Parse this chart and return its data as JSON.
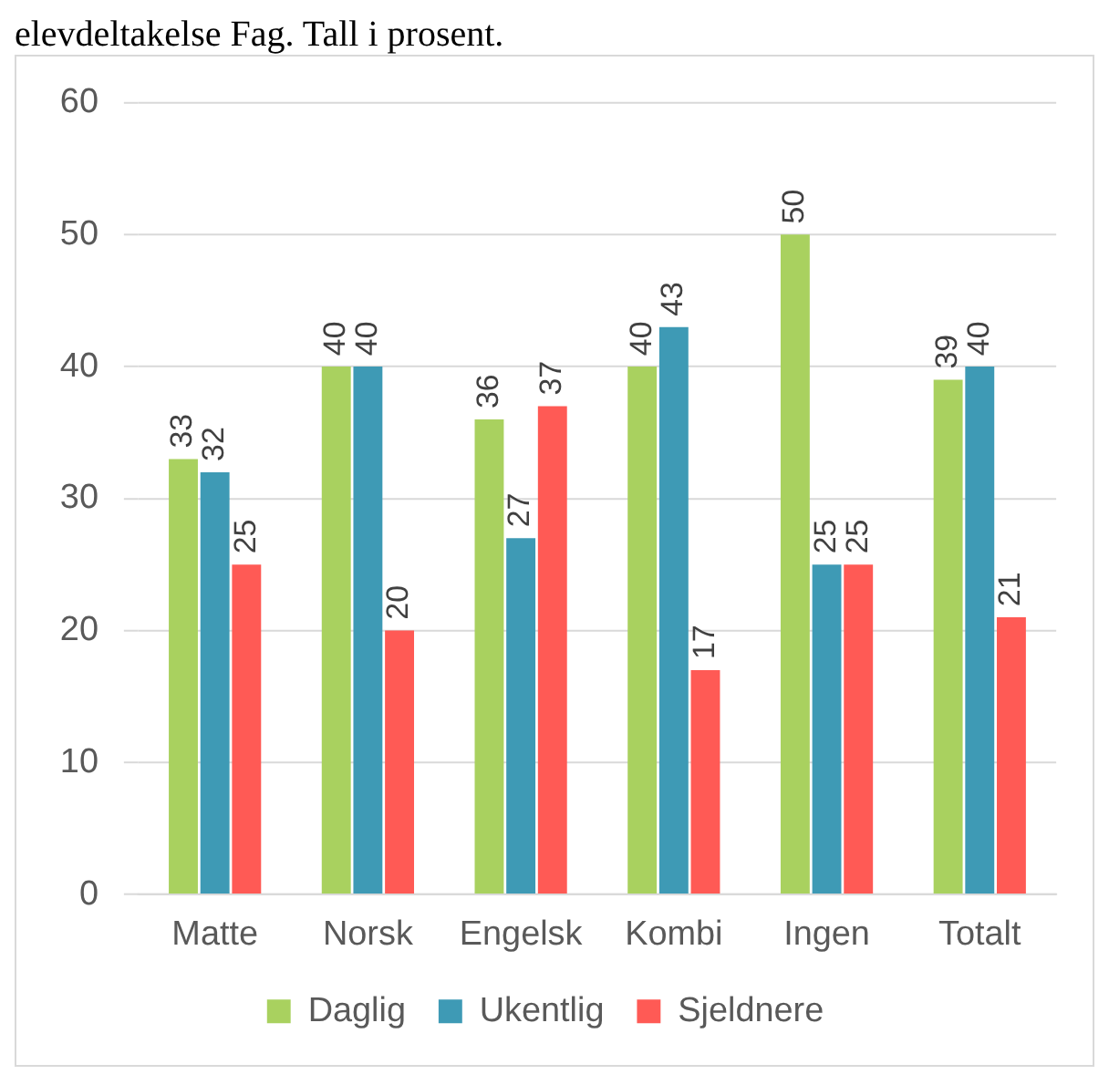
{
  "chart_data": {
    "type": "bar",
    "title": "elevdeltakelse Fag. Tall i prosent.",
    "categories": [
      "Matte",
      "Norsk",
      "Engelsk",
      "Kombi",
      "Ingen",
      "Totalt"
    ],
    "series": [
      {
        "name": "Daglig",
        "color": "#a9d15f",
        "values": [
          33,
          40,
          36,
          40,
          50,
          39
        ]
      },
      {
        "name": "Ukentlig",
        "color": "#3e9ab5",
        "values": [
          32,
          40,
          27,
          43,
          25,
          40
        ]
      },
      {
        "name": "Sjeldnere",
        "color": "#ff5a55",
        "values": [
          25,
          20,
          37,
          17,
          25,
          21
        ]
      }
    ],
    "ylim": [
      0,
      60
    ],
    "yticks": [
      0,
      10,
      20,
      30,
      40,
      50,
      60
    ],
    "grid": "y",
    "legend": "bottom",
    "data_labels": true
  }
}
